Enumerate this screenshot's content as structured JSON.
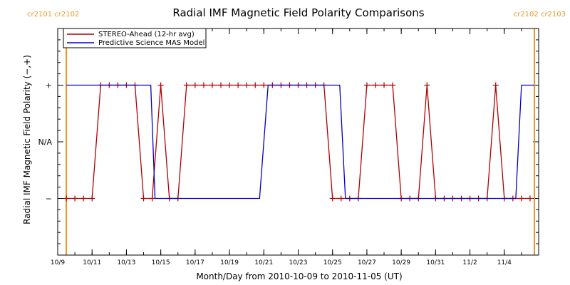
{
  "chart_data": {
    "type": "line",
    "title": "Radial IMF Magnetic Field Polarity Comparisons",
    "xlabel": "Month/Day from 2010-10-09 to 2010-11-05 (UT)",
    "ylabel": "Radial IMF Magnetic Field Polarity (−,+)",
    "xlim": [
      "2010-10-09",
      "2010-11-06"
    ],
    "ylim": [
      -2,
      2
    ],
    "x_tick_labels": [
      "10/9",
      "10/11",
      "10/13",
      "10/15",
      "10/17",
      "10/19",
      "10/21",
      "10/23",
      "10/25",
      "10/27",
      "10/29",
      "10/31",
      "11/2",
      "11/4"
    ],
    "x_tick_dates": [
      "2010-10-09",
      "2010-10-11",
      "2010-10-13",
      "2010-10-15",
      "2010-10-17",
      "2010-10-19",
      "2010-10-21",
      "2010-10-23",
      "2010-10-25",
      "2010-10-27",
      "2010-10-29",
      "2010-10-31",
      "2010-11-02",
      "2010-11-04"
    ],
    "y_tick_labels": [
      {
        "value": 1,
        "label": "+"
      },
      {
        "value": 0,
        "label": "N/A"
      },
      {
        "value": -1,
        "label": "−"
      }
    ],
    "grid": false,
    "legend_position": "top-left",
    "carrington_lines": [
      {
        "date": "2010-10-09 12:00",
        "label": "cr2101 cr2102",
        "color": "#f0961e"
      },
      {
        "date": "2010-11-05 18:00",
        "label": "cr2102 cr2103",
        "color": "#f0961e"
      }
    ],
    "series": [
      {
        "name": "STEREO-Ahead (12-hr avg)",
        "color": "#b00000",
        "marker": "+",
        "x": [
          "2010-10-09 12:00",
          "2010-10-10 00:00",
          "2010-10-10 12:00",
          "2010-10-11 00:00",
          "2010-10-11 12:00",
          "2010-10-12 00:00",
          "2010-10-12 12:00",
          "2010-10-13 00:00",
          "2010-10-13 12:00",
          "2010-10-14 00:00",
          "2010-10-14 12:00",
          "2010-10-15 00:00",
          "2010-10-15 12:00",
          "2010-10-16 00:00",
          "2010-10-16 12:00",
          "2010-10-17 00:00",
          "2010-10-17 12:00",
          "2010-10-18 00:00",
          "2010-10-18 12:00",
          "2010-10-19 00:00",
          "2010-10-19 12:00",
          "2010-10-20 00:00",
          "2010-10-20 12:00",
          "2010-10-21 00:00",
          "2010-10-21 12:00",
          "2010-10-22 00:00",
          "2010-10-22 12:00",
          "2010-10-23 00:00",
          "2010-10-23 12:00",
          "2010-10-24 00:00",
          "2010-10-24 12:00",
          "2010-10-25 00:00",
          "2010-10-25 12:00",
          "2010-10-26 00:00",
          "2010-10-26 12:00",
          "2010-10-27 00:00",
          "2010-10-27 12:00",
          "2010-10-28 00:00",
          "2010-10-28 12:00",
          "2010-10-29 00:00",
          "2010-10-29 12:00",
          "2010-10-30 00:00",
          "2010-10-30 12:00",
          "2010-10-31 00:00",
          "2010-10-31 12:00",
          "2010-11-01 00:00",
          "2010-11-01 12:00",
          "2010-11-02 00:00",
          "2010-11-02 12:00",
          "2010-11-03 00:00",
          "2010-11-03 12:00",
          "2010-11-04 00:00",
          "2010-11-04 12:00",
          "2010-11-05 00:00",
          "2010-11-05 12:00"
        ],
        "y": [
          -1,
          -1,
          -1,
          -1,
          1,
          1,
          1,
          1,
          1,
          -1,
          -1,
          1,
          -1,
          -1,
          1,
          1,
          1,
          1,
          1,
          1,
          1,
          1,
          1,
          1,
          1,
          1,
          1,
          1,
          1,
          1,
          1,
          -1,
          -1,
          -1,
          -1,
          1,
          1,
          1,
          1,
          -1,
          -1,
          -1,
          1,
          -1,
          -1,
          -1,
          -1,
          -1,
          -1,
          -1,
          1,
          -1,
          -1,
          -1,
          -1
        ]
      },
      {
        "name": "Predictive Science MAS Model",
        "color": "#0000c8",
        "x": [
          "2010-10-09 12:00",
          "2010-10-14 10:00",
          "2010-10-14 16:00",
          "2010-10-20 18:00",
          "2010-10-21 06:00",
          "2010-10-25 10:00",
          "2010-10-25 18:00",
          "2010-11-04 16:00",
          "2010-11-05 00:00",
          "2010-11-05 18:00"
        ],
        "y": [
          1,
          1,
          -1,
          -1,
          1,
          1,
          -1,
          -1,
          1,
          1
        ]
      }
    ]
  }
}
